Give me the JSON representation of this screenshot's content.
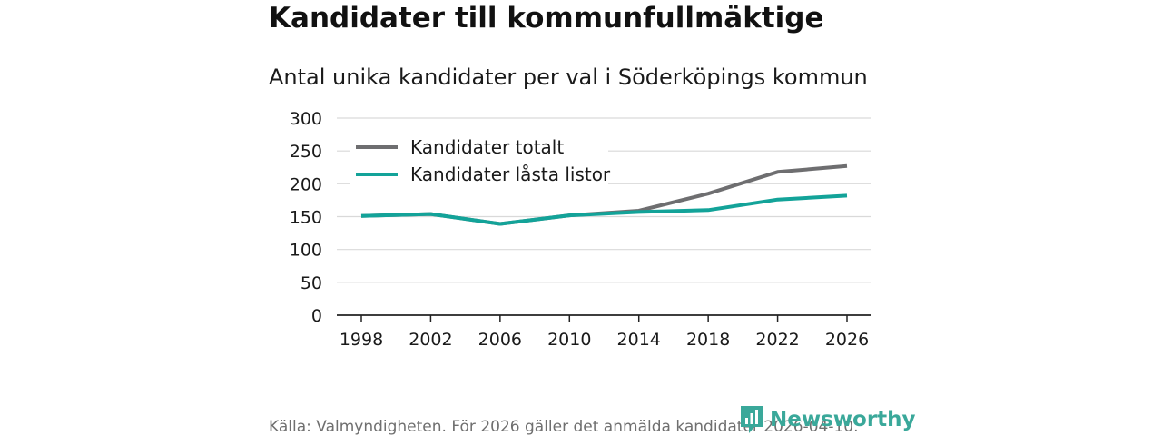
{
  "title": "Kandidater till kommunfullmäktige",
  "subtitle": "Antal unika kandidater per val i Söderköpings kommun",
  "footer": "Källa: Valmyndigheten. För 2026 gäller det anmälda kandidater 2026-04-10.",
  "brand": "Newsworthy",
  "colors": {
    "total": "#6e6e70",
    "locked": "#13a399",
    "grid": "#d9d9d9",
    "axis": "#222222",
    "brand": "#3aa89a"
  },
  "chart_data": {
    "type": "line",
    "x": [
      "1998",
      "2002",
      "2006",
      "2010",
      "2014",
      "2018",
      "2022",
      "2026"
    ],
    "ylim": [
      0,
      300
    ],
    "yticks": [
      0,
      50,
      100,
      150,
      200,
      250,
      300
    ],
    "legend_position": "top-left",
    "grid": true,
    "series": [
      {
        "key": "total",
        "name": "Kandidater totalt",
        "values": [
          151,
          154,
          139,
          152,
          159,
          185,
          218,
          227
        ]
      },
      {
        "key": "locked",
        "name": "Kandidater låsta listor",
        "values": [
          151,
          154,
          139,
          152,
          157,
          160,
          176,
          182
        ]
      }
    ]
  }
}
